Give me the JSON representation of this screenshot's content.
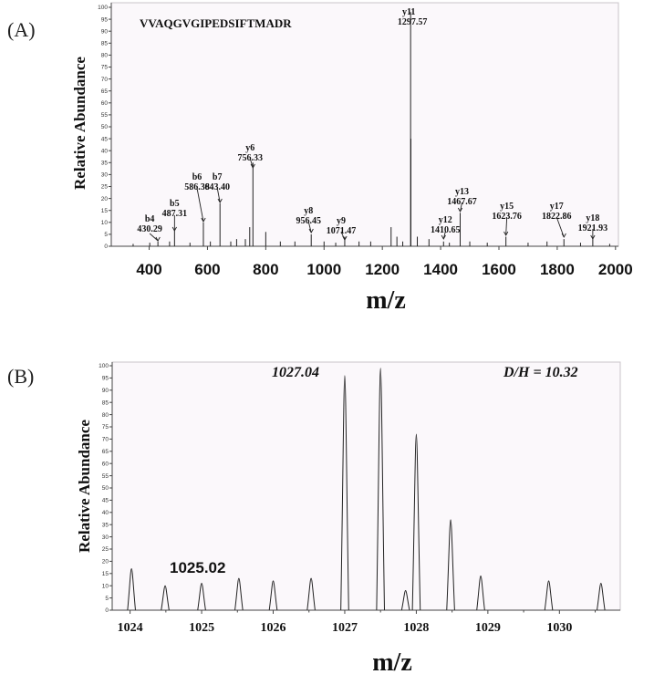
{
  "chart_data": [
    {
      "type": "line",
      "panel_label": "(A)",
      "annotation": "VVAQGVGIPEDSIFTMADR",
      "xlabel": "m/z",
      "ylabel": "Relative Abundance",
      "xlim": [
        270,
        2010
      ],
      "ylim": [
        0,
        100
      ],
      "x_ticks": [
        "400",
        "600",
        "800",
        "1000",
        "1200",
        "1400",
        "1600",
        "1800",
        "2000"
      ],
      "x_tick_values": [
        400,
        600,
        800,
        1000,
        1200,
        1400,
        1600,
        1800,
        2000
      ],
      "y_ticks": [
        "0",
        "5",
        "10",
        "15",
        "20",
        "25",
        "30",
        "35",
        "40",
        "45",
        "50",
        "55",
        "60",
        "65",
        "70",
        "75",
        "80",
        "85",
        "90",
        "95",
        "100"
      ],
      "peaks": [
        [
          345,
          1
        ],
        [
          402,
          1.5
        ],
        [
          430,
          2
        ],
        [
          470,
          2
        ],
        [
          487,
          7
        ],
        [
          540,
          1.5
        ],
        [
          586,
          10
        ],
        [
          610,
          2
        ],
        [
          643,
          18
        ],
        [
          680,
          2
        ],
        [
          700,
          3
        ],
        [
          730,
          3
        ],
        [
          745,
          8
        ],
        [
          756,
          35
        ],
        [
          800,
          6
        ],
        [
          850,
          2
        ],
        [
          900,
          2
        ],
        [
          956,
          5
        ],
        [
          1000,
          2
        ],
        [
          1040,
          1.5
        ],
        [
          1071,
          4
        ],
        [
          1120,
          2
        ],
        [
          1160,
          2
        ],
        [
          1230,
          8
        ],
        [
          1250,
          4
        ],
        [
          1270,
          2
        ],
        [
          1297,
          98
        ],
        [
          1298,
          45
        ],
        [
          1320,
          4
        ],
        [
          1360,
          3
        ],
        [
          1410,
          2
        ],
        [
          1430,
          1.5
        ],
        [
          1467,
          14
        ],
        [
          1500,
          2
        ],
        [
          1560,
          1.5
        ],
        [
          1624,
          4
        ],
        [
          1700,
          1.5
        ],
        [
          1765,
          2
        ],
        [
          1823,
          3
        ],
        [
          1880,
          1.5
        ],
        [
          1922,
          3
        ],
        [
          1980,
          1
        ]
      ],
      "labels": [
        {
          "name": "b4",
          "value": "430.29",
          "x": 430
        },
        {
          "name": "b5",
          "value": "487.31",
          "x": 487
        },
        {
          "name": "b6",
          "value": "586.38",
          "x": 586
        },
        {
          "name": "b7",
          "value": "643.40",
          "x": 643
        },
        {
          "name": "y6",
          "value": "756.33",
          "x": 756
        },
        {
          "name": "y8",
          "value": "956.45",
          "x": 956
        },
        {
          "name": "y9",
          "value": "1071.47",
          "x": 1071
        },
        {
          "name": "y11",
          "value": "1297.57",
          "x": 1297
        },
        {
          "name": "y12",
          "value": "1410.65",
          "x": 1410
        },
        {
          "name": "y13",
          "value": "1467.67",
          "x": 1467
        },
        {
          "name": "y15",
          "value": "1623.76",
          "x": 1624
        },
        {
          "name": "y17",
          "value": "1822.86",
          "x": 1823
        },
        {
          "name": "y18",
          "value": "1921.93",
          "x": 1922
        }
      ]
    },
    {
      "type": "line",
      "panel_label": "(B)",
      "top_left_annotation": "1027.04",
      "top_right_annotation": "D/H = 10.32",
      "peak_annotation": "1025.02",
      "xlabel": "m/z",
      "ylabel": "Relative Abundance",
      "xlim": [
        1023.75,
        1030.85
      ],
      "ylim": [
        0,
        100
      ],
      "x_ticks": [
        "1024",
        "1025",
        "1026",
        "1027",
        "1028",
        "1029",
        "1030"
      ],
      "x_tick_values": [
        1024,
        1025,
        1026,
        1027,
        1028,
        1029,
        1030
      ],
      "y_ticks": [
        "0",
        "5",
        "10",
        "15",
        "20",
        "25",
        "30",
        "35",
        "40",
        "45",
        "50",
        "55",
        "60",
        "65",
        "70",
        "75",
        "80",
        "85",
        "90",
        "95",
        "100"
      ],
      "peaks": [
        [
          1024.02,
          17
        ],
        [
          1024.49,
          10
        ],
        [
          1025.0,
          11
        ],
        [
          1025.52,
          13
        ],
        [
          1026.0,
          12
        ],
        [
          1026.53,
          13
        ],
        [
          1027.0,
          96
        ],
        [
          1027.5,
          99
        ],
        [
          1027.85,
          8
        ],
        [
          1028.0,
          72
        ],
        [
          1028.48,
          37
        ],
        [
          1028.9,
          14
        ],
        [
          1029.85,
          12
        ],
        [
          1030.58,
          11
        ]
      ]
    }
  ]
}
